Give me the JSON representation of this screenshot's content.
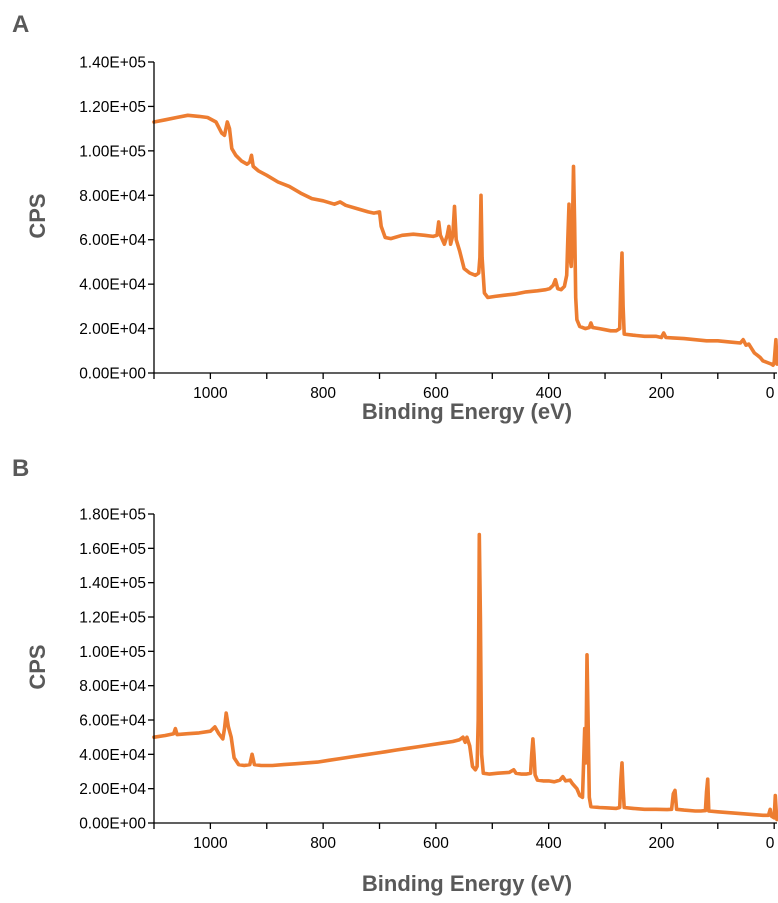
{
  "chart_data": [
    {
      "panel_label": "A",
      "type": "line",
      "xlabel": "Binding Energy (eV)",
      "ylabel": "CPS",
      "xlim": [
        1100,
        -5
      ],
      "ylim": [
        0,
        140000
      ],
      "x_reversed": true,
      "grid": false,
      "x_ticks": [
        1000,
        800,
        600,
        400,
        200,
        0
      ],
      "x_tick_labels": [
        "1000",
        "800",
        "600",
        "400",
        "200",
        "0"
      ],
      "y_ticks": [
        0,
        20000,
        40000,
        60000,
        80000,
        100000,
        120000,
        140000
      ],
      "y_tick_labels": [
        "0.00E+00",
        "2.00E+04",
        "4.00E+04",
        "6.00E+04",
        "8.00E+04",
        "1.00E+05",
        "1.20E+05",
        "1.40E+05"
      ],
      "series": [
        {
          "color": "#ed7d31",
          "points": [
            [
              1100,
              113000
            ],
            [
              1080,
              114000
            ],
            [
              1060,
              115000
            ],
            [
              1040,
              116000
            ],
            [
              1020,
              115500
            ],
            [
              1005,
              115000
            ],
            [
              990,
              113000
            ],
            [
              980,
              108000
            ],
            [
              975,
              107000
            ],
            [
              970,
              113000
            ],
            [
              966,
              110000
            ],
            [
              962,
              101000
            ],
            [
              955,
              98000
            ],
            [
              945,
              95500
            ],
            [
              935,
              94000
            ],
            [
              930,
              95000
            ],
            [
              927,
              98000
            ],
            [
              924,
              93000
            ],
            [
              915,
              91000
            ],
            [
              900,
              89000
            ],
            [
              880,
              86000
            ],
            [
              860,
              84000
            ],
            [
              840,
              81000
            ],
            [
              820,
              78500
            ],
            [
              800,
              77500
            ],
            [
              780,
              76000
            ],
            [
              770,
              77000
            ],
            [
              760,
              75500
            ],
            [
              740,
              74000
            ],
            [
              720,
              72500
            ],
            [
              710,
              72000
            ],
            [
              700,
              72500
            ],
            [
              697,
              66000
            ],
            [
              690,
              61000
            ],
            [
              680,
              60500
            ],
            [
              660,
              62000
            ],
            [
              640,
              62500
            ],
            [
              620,
              62000
            ],
            [
              605,
              61500
            ],
            [
              598,
              62000
            ],
            [
              595,
              68000
            ],
            [
              592,
              62000
            ],
            [
              585,
              58000
            ],
            [
              580,
              62000
            ],
            [
              577,
              66000
            ],
            [
              574,
              58000
            ],
            [
              570,
              62000
            ],
            [
              567,
              75000
            ],
            [
              564,
              60000
            ],
            [
              558,
              55000
            ],
            [
              550,
              47000
            ],
            [
              540,
              45000
            ],
            [
              530,
              44000
            ],
            [
              524,
              45000
            ],
            [
              522,
              52000
            ],
            [
              520,
              80000
            ],
            [
              518,
              52000
            ],
            [
              514,
              36000
            ],
            [
              508,
              34000
            ],
            [
              495,
              34500
            ],
            [
              480,
              35000
            ],
            [
              460,
              35500
            ],
            [
              440,
              36500
            ],
            [
              420,
              37000
            ],
            [
              405,
              37500
            ],
            [
              398,
              38000
            ],
            [
              392,
              39500
            ],
            [
              388,
              42000
            ],
            [
              384,
              38000
            ],
            [
              378,
              37500
            ],
            [
              372,
              39000
            ],
            [
              368,
              44000
            ],
            [
              366,
              60000
            ],
            [
              364,
              76000
            ],
            [
              362,
              52000
            ],
            [
              360,
              48000
            ],
            [
              358,
              62000
            ],
            [
              356,
              93000
            ],
            [
              354,
              68000
            ],
            [
              352,
              34000
            ],
            [
              350,
              24000
            ],
            [
              345,
              21000
            ],
            [
              335,
              20000
            ],
            [
              328,
              20500
            ],
            [
              325,
              22500
            ],
            [
              322,
              20500
            ],
            [
              310,
              20000
            ],
            [
              300,
              19500
            ],
            [
              290,
              19000
            ],
            [
              280,
              19000
            ],
            [
              274,
              20000
            ],
            [
              272,
              40000
            ],
            [
              270,
              54000
            ],
            [
              268,
              30000
            ],
            [
              266,
              17500
            ],
            [
              250,
              17000
            ],
            [
              230,
              16500
            ],
            [
              210,
              16500
            ],
            [
              200,
              16000
            ],
            [
              196,
              18000
            ],
            [
              192,
              16000
            ],
            [
              180,
              15800
            ],
            [
              160,
              15500
            ],
            [
              140,
              15000
            ],
            [
              120,
              14500
            ],
            [
              100,
              14500
            ],
            [
              80,
              14000
            ],
            [
              60,
              13500
            ],
            [
              55,
              15000
            ],
            [
              50,
              12500
            ],
            [
              45,
              13000
            ],
            [
              40,
              11000
            ],
            [
              35,
              9000
            ],
            [
              30,
              8000
            ],
            [
              25,
              7000
            ],
            [
              20,
              5500
            ],
            [
              10,
              4500
            ],
            [
              5,
              4000
            ],
            [
              2,
              3500
            ],
            [
              0,
              5000
            ],
            [
              -3,
              15000
            ],
            [
              -5,
              4000
            ]
          ]
        }
      ]
    },
    {
      "panel_label": "B",
      "type": "line",
      "xlabel": "Binding Energy (eV)",
      "ylabel": "CPS",
      "xlim": [
        1100,
        -5
      ],
      "ylim": [
        0,
        180000
      ],
      "x_reversed": true,
      "grid": false,
      "x_ticks": [
        1000,
        800,
        600,
        400,
        200,
        0
      ],
      "x_tick_labels": [
        "1000",
        "800",
        "600",
        "400",
        "200",
        "0"
      ],
      "y_ticks": [
        0,
        20000,
        40000,
        60000,
        80000,
        100000,
        120000,
        140000,
        160000,
        180000
      ],
      "y_tick_labels": [
        "0.00E+00",
        "2.00E+04",
        "4.00E+04",
        "6.00E+04",
        "8.00E+04",
        "1.00E+05",
        "1.20E+05",
        "1.40E+05",
        "1.60E+05",
        "1.80E+05"
      ],
      "series": [
        {
          "color": "#ed7d31",
          "points": [
            [
              1100,
              50000
            ],
            [
              1080,
              51000
            ],
            [
              1065,
              52000
            ],
            [
              1062,
              55000
            ],
            [
              1059,
              51500
            ],
            [
              1040,
              52000
            ],
            [
              1020,
              52500
            ],
            [
              1000,
              53500
            ],
            [
              992,
              56000
            ],
            [
              985,
              52000
            ],
            [
              978,
              49000
            ],
            [
              975,
              55000
            ],
            [
              972,
              64000
            ],
            [
              968,
              56000
            ],
            [
              963,
              50000
            ],
            [
              958,
              38000
            ],
            [
              950,
              34000
            ],
            [
              940,
              33500
            ],
            [
              930,
              34000
            ],
            [
              926,
              40000
            ],
            [
              922,
              34000
            ],
            [
              910,
              33500
            ],
            [
              890,
              33500
            ],
            [
              870,
              34000
            ],
            [
              850,
              34500
            ],
            [
              830,
              35000
            ],
            [
              810,
              35500
            ],
            [
              790,
              36500
            ],
            [
              770,
              37500
            ],
            [
              750,
              38500
            ],
            [
              730,
              39500
            ],
            [
              710,
              40500
            ],
            [
              690,
              41500
            ],
            [
              670,
              42500
            ],
            [
              650,
              43500
            ],
            [
              630,
              44500
            ],
            [
              610,
              45500
            ],
            [
              590,
              46500
            ],
            [
              570,
              47500
            ],
            [
              558,
              48500
            ],
            [
              552,
              50000
            ],
            [
              548,
              47000
            ],
            [
              545,
              50000
            ],
            [
              540,
              45000
            ],
            [
              535,
              33000
            ],
            [
              530,
              31000
            ],
            [
              527,
              33000
            ],
            [
              525,
              60000
            ],
            [
              523,
              168000
            ],
            [
              521,
              120000
            ],
            [
              519,
              40000
            ],
            [
              516,
              29000
            ],
            [
              505,
              28500
            ],
            [
              490,
              29000
            ],
            [
              470,
              29500
            ],
            [
              462,
              31000
            ],
            [
              458,
              29000
            ],
            [
              448,
              28500
            ],
            [
              440,
              28500
            ],
            [
              432,
              29000
            ],
            [
              430,
              40000
            ],
            [
              428,
              49000
            ],
            [
              426,
              40000
            ],
            [
              424,
              28000
            ],
            [
              420,
              25000
            ],
            [
              410,
              24500
            ],
            [
              400,
              24500
            ],
            [
              390,
              24000
            ],
            [
              380,
              25000
            ],
            [
              375,
              27000
            ],
            [
              370,
              24500
            ],
            [
              362,
              25000
            ],
            [
              358,
              23000
            ],
            [
              350,
              20000
            ],
            [
              345,
              16000
            ],
            [
              340,
              15000
            ],
            [
              336,
              55000
            ],
            [
              334,
              35000
            ],
            [
              332,
              98000
            ],
            [
              330,
              60000
            ],
            [
              328,
              15000
            ],
            [
              325,
              9500
            ],
            [
              310,
              9000
            ],
            [
              295,
              8800
            ],
            [
              280,
              8500
            ],
            [
              274,
              9000
            ],
            [
              272,
              25000
            ],
            [
              270,
              35000
            ],
            [
              268,
              20000
            ],
            [
              266,
              9000
            ],
            [
              250,
              8500
            ],
            [
              230,
              8000
            ],
            [
              210,
              8000
            ],
            [
              190,
              7800
            ],
            [
              182,
              8000
            ],
            [
              179,
              17000
            ],
            [
              176,
              19000
            ],
            [
              173,
              8000
            ],
            [
              160,
              7500
            ],
            [
              140,
              7000
            ],
            [
              130,
              7000
            ],
            [
              122,
              7200
            ],
            [
              120,
              18000
            ],
            [
              118,
              25500
            ],
            [
              116,
              7000
            ],
            [
              100,
              6500
            ],
            [
              80,
              6000
            ],
            [
              60,
              5500
            ],
            [
              40,
              5000
            ],
            [
              20,
              4500
            ],
            [
              10,
              4500
            ],
            [
              7,
              8000
            ],
            [
              5,
              4000
            ],
            [
              0,
              3000
            ],
            [
              -2,
              16000
            ],
            [
              -4,
              5000
            ],
            [
              -5,
              2000
            ]
          ]
        }
      ]
    }
  ]
}
